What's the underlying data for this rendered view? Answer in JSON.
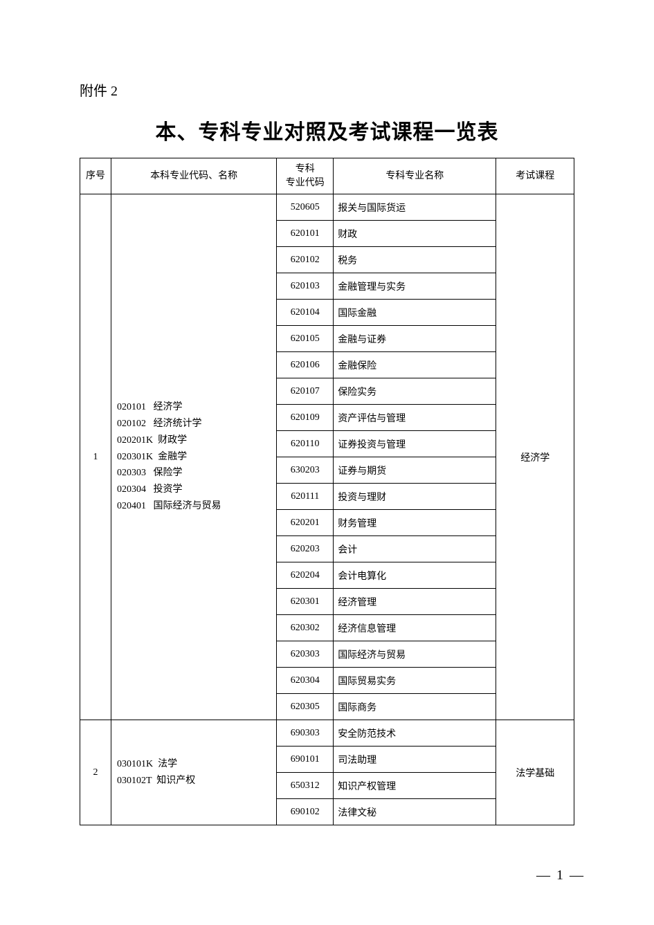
{
  "attachment_label": "附件 2",
  "title": "本、专科专业对照及考试课程一览表",
  "headers": {
    "seq": "序号",
    "bk": "本科专业代码、名称",
    "zkcode": "专科\n专业代码",
    "zkname": "专科专业名称",
    "course": "考试课程"
  },
  "groups": [
    {
      "seq": "1",
      "bk": [
        {
          "code": "020101",
          "name": "经济学"
        },
        {
          "code": "020102",
          "name": "经济统计学"
        },
        {
          "code": "020201K",
          "name": "财政学"
        },
        {
          "code": "020301K",
          "name": "金融学"
        },
        {
          "code": "020303",
          "name": "保险学"
        },
        {
          "code": "020304",
          "name": "投资学"
        },
        {
          "code": "020401",
          "name": "国际经济与贸易"
        }
      ],
      "course": "经济学",
      "rows": [
        {
          "code": "520605",
          "name": "报关与国际货运"
        },
        {
          "code": "620101",
          "name": "财政"
        },
        {
          "code": "620102",
          "name": "税务"
        },
        {
          "code": "620103",
          "name": "金融管理与实务"
        },
        {
          "code": "620104",
          "name": "国际金融"
        },
        {
          "code": "620105",
          "name": "金融与证券"
        },
        {
          "code": "620106",
          "name": "金融保险"
        },
        {
          "code": "620107",
          "name": "保险实务"
        },
        {
          "code": "620109",
          "name": "资产评估与管理"
        },
        {
          "code": "620110",
          "name": "证券投资与管理"
        },
        {
          "code": "630203",
          "name": "证券与期货"
        },
        {
          "code": "620111",
          "name": "投资与理财"
        },
        {
          "code": "620201",
          "name": "财务管理"
        },
        {
          "code": "620203",
          "name": "会计"
        },
        {
          "code": "620204",
          "name": "会计电算化"
        },
        {
          "code": "620301",
          "name": "经济管理"
        },
        {
          "code": "620302",
          "name": "经济信息管理"
        },
        {
          "code": "620303",
          "name": "国际经济与贸易"
        },
        {
          "code": "620304",
          "name": "国际贸易实务"
        },
        {
          "code": "620305",
          "name": "国际商务"
        }
      ]
    },
    {
      "seq": "2",
      "bk": [
        {
          "code": "030101K",
          "name": "法学"
        },
        {
          "code": "030102T",
          "name": "知识产权"
        }
      ],
      "course": "法学基础",
      "rows": [
        {
          "code": "690303",
          "name": "安全防范技术"
        },
        {
          "code": "690101",
          "name": "司法助理"
        },
        {
          "code": "650312",
          "name": "知识产权管理"
        },
        {
          "code": "690102",
          "name": "法律文秘"
        }
      ]
    }
  ],
  "page_number": "— 1 —"
}
